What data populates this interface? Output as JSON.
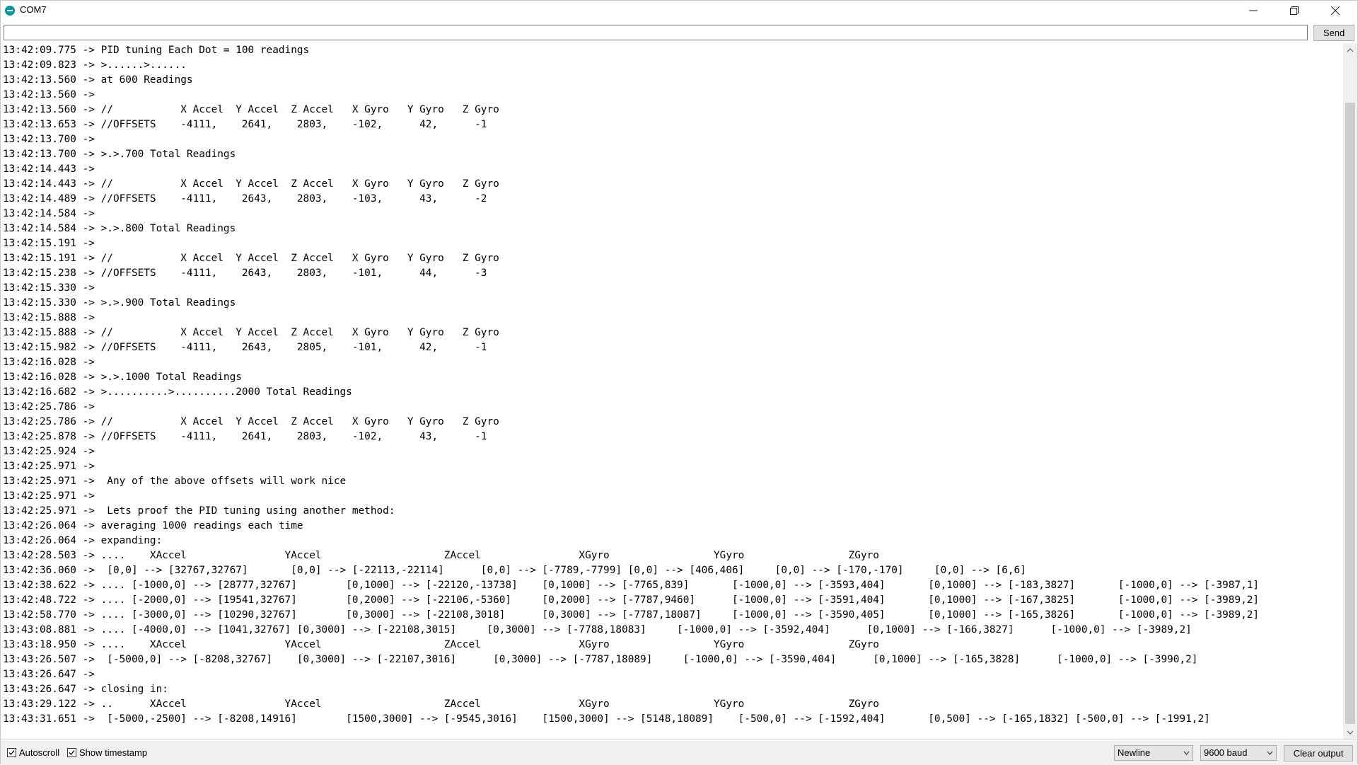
{
  "window": {
    "title": "COM7"
  },
  "input": {
    "value": "",
    "send_label": "Send"
  },
  "output": {
    "lines": [
      "13:42:09.775 -> PID tuning Each Dot = 100 readings",
      "13:42:09.823 -> >......>......",
      "13:42:13.560 -> at 600 Readings",
      "13:42:13.560 -> ",
      "13:42:13.560 -> //           X Accel  Y Accel  Z Accel   X Gyro   Y Gyro   Z Gyro",
      "13:42:13.653 -> //OFFSETS    -4111,    2641,    2803,    -102,      42,      -1",
      "13:42:13.700 -> ",
      "13:42:13.700 -> >.>.700 Total Readings",
      "13:42:14.443 -> ",
      "13:42:14.443 -> //           X Accel  Y Accel  Z Accel   X Gyro   Y Gyro   Z Gyro",
      "13:42:14.489 -> //OFFSETS    -4111,    2643,    2803,    -103,      43,      -2",
      "13:42:14.584 -> ",
      "13:42:14.584 -> >.>.800 Total Readings",
      "13:42:15.191 -> ",
      "13:42:15.191 -> //           X Accel  Y Accel  Z Accel   X Gyro   Y Gyro   Z Gyro",
      "13:42:15.238 -> //OFFSETS    -4111,    2643,    2803,    -101,      44,      -3",
      "13:42:15.330 -> ",
      "13:42:15.330 -> >.>.900 Total Readings",
      "13:42:15.888 -> ",
      "13:42:15.888 -> //           X Accel  Y Accel  Z Accel   X Gyro   Y Gyro   Z Gyro",
      "13:42:15.982 -> //OFFSETS    -4111,    2643,    2805,    -101,      42,      -1",
      "13:42:16.028 -> ",
      "13:42:16.028 -> >.>.1000 Total Readings",
      "13:42:16.682 -> >..........>..........2000 Total Readings",
      "13:42:25.786 -> ",
      "13:42:25.786 -> //           X Accel  Y Accel  Z Accel   X Gyro   Y Gyro   Z Gyro",
      "13:42:25.878 -> //OFFSETS    -4111,    2641,    2803,    -102,      43,      -1",
      "13:42:25.924 -> ",
      "13:42:25.971 -> ",
      "13:42:25.971 ->  Any of the above offsets will work nice ",
      "13:42:25.971 -> ",
      "13:42:25.971 ->  Lets proof the PID tuning using another method:",
      "13:42:26.064 -> averaging 1000 readings each time",
      "13:42:26.064 -> expanding:",
      "13:42:28.503 -> ....    XAccel                YAccel                    ZAccel                XGyro                 YGyro                 ZGyro",
      "13:42:36.060 ->  [0,0] --> [32767,32767]       [0,0] --> [-22113,-22114]      [0,0] --> [-7789,-7799] [0,0] --> [406,406]     [0,0] --> [-170,-170]     [0,0] --> [6,6]",
      "13:42:38.622 -> .... [-1000,0] --> [28777,32767]        [0,1000] --> [-22120,-13738]    [0,1000] --> [-7765,839]       [-1000,0] --> [-3593,404]       [0,1000] --> [-183,3827]       [-1000,0] --> [-3987,1]",
      "13:42:48.722 -> .... [-2000,0] --> [19541,32767]        [0,2000] --> [-22106,-5360]     [0,2000] --> [-7787,9460]      [-1000,0] --> [-3591,404]       [0,1000] --> [-167,3825]       [-1000,0] --> [-3989,2]",
      "13:42:58.770 -> .... [-3000,0] --> [10290,32767]        [0,3000] --> [-22108,3018]      [0,3000] --> [-7787,18087]     [-1000,0] --> [-3590,405]       [0,1000] --> [-165,3826]       [-1000,0] --> [-3989,2]",
      "13:43:08.881 -> .... [-4000,0] --> [1041,32767] [0,3000] --> [-22108,3015]     [0,3000] --> [-7788,18083]     [-1000,0] --> [-3592,404]      [0,1000] --> [-166,3827]      [-1000,0] --> [-3989,2]",
      "13:43:18.950 -> ....    XAccel                YAccel                    ZAccel                XGyro                 YGyro                 ZGyro",
      "13:43:26.507 ->  [-5000,0] --> [-8208,32767]    [0,3000] --> [-22107,3016]      [0,3000] --> [-7787,18089]     [-1000,0] --> [-3590,404]      [0,1000] --> [-165,3828]      [-1000,0] --> [-3990,2]",
      "13:43:26.647 -> ",
      "13:43:26.647 -> closing in:",
      "13:43:29.122 -> ..      XAccel                YAccel                    ZAccel                XGyro                 YGyro                 ZGyro",
      "13:43:31.651 ->  [-5000,-2500] --> [-8208,14916]        [1500,3000] --> [-9545,3016]    [1500,3000] --> [5148,18089]    [-500,0] --> [-1592,404]       [0,500] --> [-165,1832] [-500,0] --> [-1991,2]"
    ]
  },
  "footer": {
    "autoscroll_label": "Autoscroll",
    "autoscroll_checked": true,
    "timestamp_label": "Show timestamp",
    "timestamp_checked": true,
    "line_ending": "Newline",
    "baud_rate": "9600 baud",
    "clear_label": "Clear output"
  },
  "icons": {
    "app": "arduino-icon",
    "minimize": "minimize-icon",
    "maximize": "restore-icon",
    "close": "close-icon"
  }
}
